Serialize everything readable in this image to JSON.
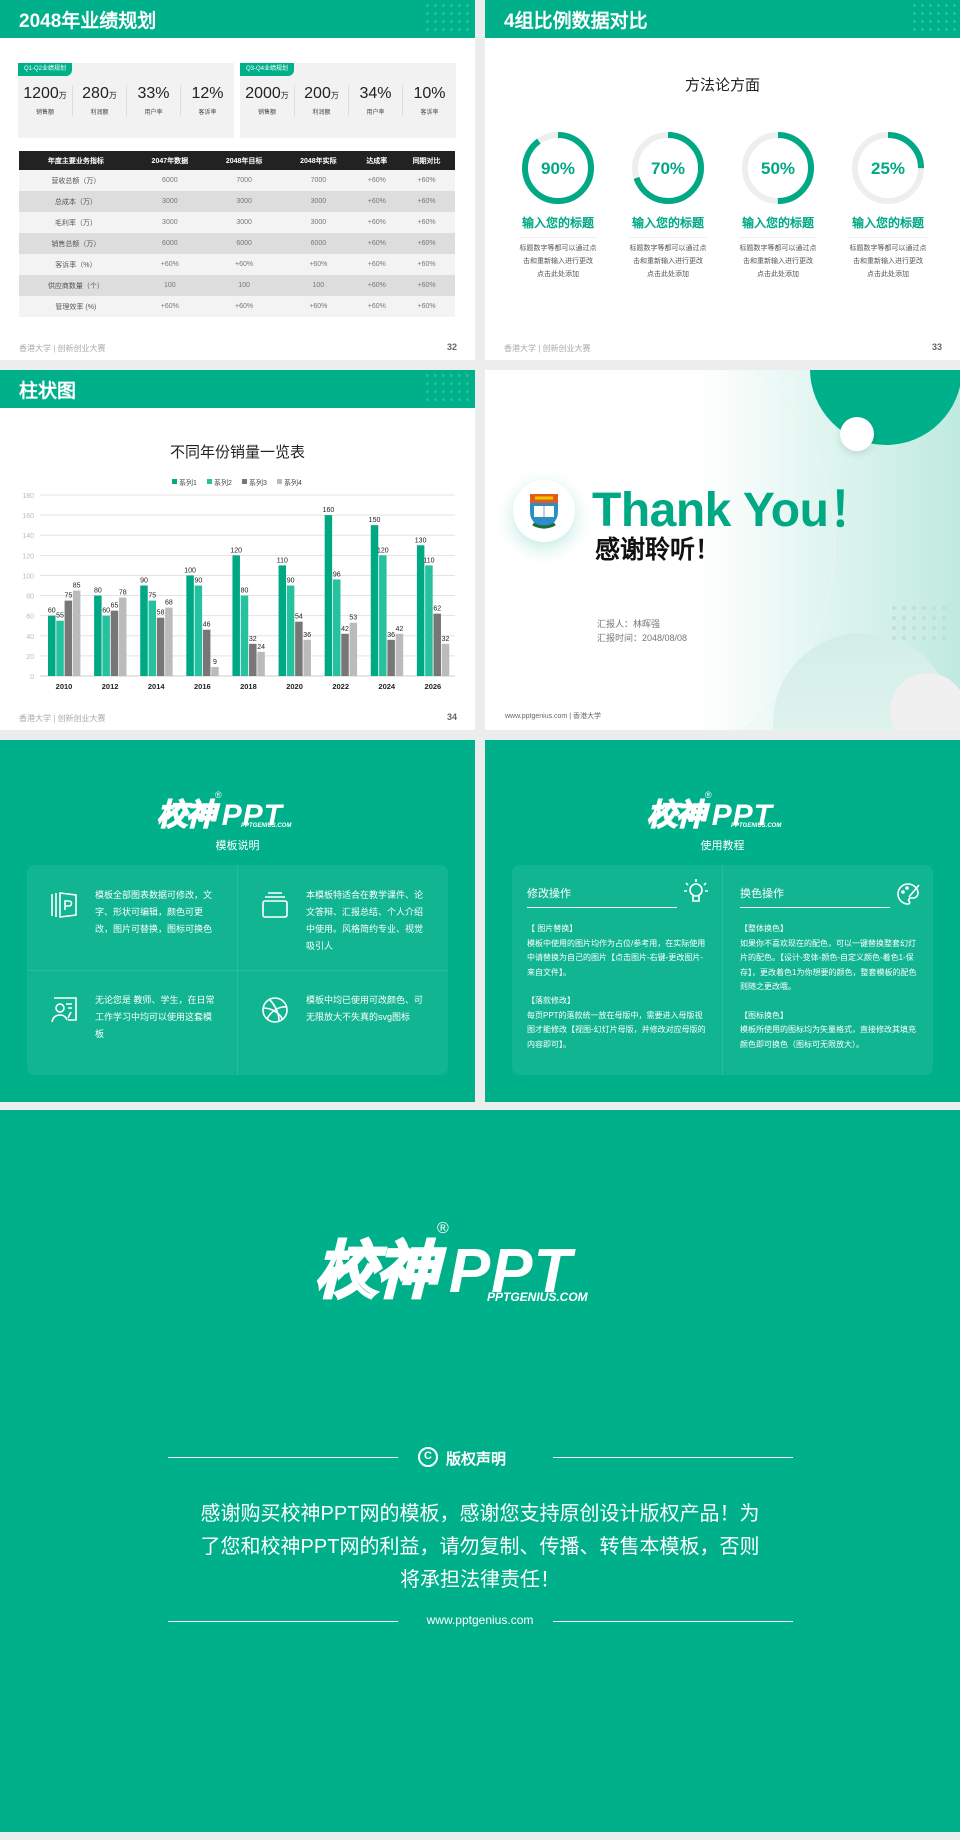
{
  "colors": {
    "brand": "#00b08a",
    "series1": "#00a884",
    "series2": "#26c29f",
    "series3": "#777777",
    "series4": "#bbbbbb",
    "dark": "#222222"
  },
  "footer": "香港大学 | 创新创业大赛",
  "slide32": {
    "title": "2048年业绩规划",
    "page": "32",
    "cards": [
      {
        "tag": "Q1-Q2业绩规划",
        "kpis": [
          {
            "v": "1200",
            "u": "万",
            "l": "销售额"
          },
          {
            "v": "280",
            "u": "万",
            "l": "利润额"
          },
          {
            "v": "33%",
            "u": "",
            "l": "用户率"
          },
          {
            "v": "12%",
            "u": "",
            "l": "客诉率"
          }
        ]
      },
      {
        "tag": "Q3-Q4业绩规划",
        "kpis": [
          {
            "v": "2000",
            "u": "万",
            "l": "销售额"
          },
          {
            "v": "200",
            "u": "万",
            "l": "利润额"
          },
          {
            "v": "34%",
            "u": "",
            "l": "用户率"
          },
          {
            "v": "10%",
            "u": "",
            "l": "客诉率"
          }
        ]
      }
    ],
    "table": {
      "headers": [
        "年度主要业务指标",
        "2047年数据",
        "2048年目标",
        "2048年实际",
        "达成率",
        "同期对比"
      ],
      "rows": [
        [
          "营收总额（万）",
          "6000",
          "7000",
          "7000",
          "+60%",
          "+60%"
        ],
        [
          "总成本（万）",
          "3000",
          "3000",
          "3000",
          "+60%",
          "+60%"
        ],
        [
          "毛利率（万）",
          "3000",
          "3000",
          "3000",
          "+60%",
          "+60%"
        ],
        [
          "销售总额（万）",
          "6000",
          "6000",
          "6000",
          "+60%",
          "+60%"
        ],
        [
          "客诉率（%）",
          "+60%",
          "+60%",
          "+60%",
          "+60%",
          "+60%"
        ],
        [
          "供应商数量（个）",
          "100",
          "100",
          "100",
          "+60%",
          "+60%"
        ],
        [
          "管理效率 (%)",
          "+60%",
          "+60%",
          "+60%",
          "+60%",
          "+60%"
        ]
      ]
    }
  },
  "slide33": {
    "title": "4组比例数据对比",
    "page": "33",
    "subtitle": "方法论方面",
    "rings": [
      {
        "percent": 90,
        "label": "90%",
        "title": "输入您的标题",
        "desc": [
          "标题数字等都可以通过点",
          "击和重新输入进行更改",
          "点击此处添加"
        ]
      },
      {
        "percent": 70,
        "label": "70%",
        "title": "输入您的标题",
        "desc": [
          "标题数字等都可以通过点",
          "击和重新输入进行更改",
          "点击此处添加"
        ]
      },
      {
        "percent": 50,
        "label": "50%",
        "title": "输入您的标题",
        "desc": [
          "标题数字等都可以通过点",
          "击和重新输入进行更改",
          "点击此处添加"
        ]
      },
      {
        "percent": 25,
        "label": "25%",
        "title": "输入您的标题",
        "desc": [
          "标题数字等都可以通过点",
          "击和重新输入进行更改",
          "点击此处添加"
        ]
      }
    ]
  },
  "slide34": {
    "title": "柱状图",
    "page": "34"
  },
  "chart_data": {
    "type": "bar",
    "title": "不同年份销量一览表",
    "xlabel": "",
    "ylabel": "",
    "categories": [
      "2010",
      "2012",
      "2014",
      "2016",
      "2018",
      "2020",
      "2022",
      "2024",
      "2026"
    ],
    "ylim": [
      0,
      180
    ],
    "yticks": [
      0,
      20,
      40,
      60,
      80,
      100,
      120,
      140,
      160,
      180
    ],
    "grid": true,
    "legend": "top",
    "series": [
      {
        "name": "系列1",
        "values": [
          60,
          80,
          90,
          100,
          120,
          110,
          160,
          150,
          130
        ]
      },
      {
        "name": "系列2",
        "values": [
          55,
          60,
          75,
          90,
          80,
          90,
          96,
          120,
          110
        ]
      },
      {
        "name": "系列3",
        "values": [
          75,
          65,
          58,
          46,
          32,
          54,
          42,
          36,
          62
        ]
      },
      {
        "name": "系列4",
        "values": [
          85,
          78,
          68,
          9,
          24,
          36,
          53,
          42,
          32
        ]
      }
    ]
  },
  "thanks": {
    "en": "Thank You！",
    "cn": "感谢聆听！",
    "reporter": "汇报人：林晖强",
    "time": "汇报时间：2048/08/08",
    "footer": "www.pptgenius.com | 香港大学",
    "logo_alt": "香港大学校徽"
  },
  "logo": {
    "cn": "校神",
    "reg": "®",
    "en": "PPT",
    "domain": "PPTGENIUS.COM"
  },
  "guide": {
    "title": "模板说明",
    "items": [
      {
        "icon": "ppt-file-icon",
        "text": "模板全部图表数据可修改，文字、形状可编辑，颜色可更改，图片可替换，图标可换色"
      },
      {
        "icon": "window-stack-icon",
        "text": "本模板特适合在教学课件、论文答辩、汇报总结、个人介绍中使用。风格简约专业、视觉吸引人"
      },
      {
        "icon": "presenter-icon",
        "text": "无论您是 教师、学生，在日常工作学习中均可以使用这套模板"
      },
      {
        "icon": "basketball-icon",
        "text": "模板中均已使用可改颜色、可无限放大不失真的svg图标"
      }
    ]
  },
  "tutorial": {
    "title": "使用教程",
    "left": {
      "heading": "修改操作",
      "icon": "lightbulb-icon",
      "p1h": "【 图片替换】",
      "p1": "模板中使用的图片均作为占位/参考用，在实际使用中请替换为自己的图片【点击图片-右键-更改图片-来自文件】。",
      "p2h": "【落款修改】",
      "p2": "每页PPT的落款统一放在母版中，需要进入母版视图才能修改【视图-幻灯片母版，并修改对应母版的内容即可】。"
    },
    "right": {
      "heading": "换色操作",
      "icon": "palette-icon",
      "p1h": "【整体换色】",
      "p1": "如果你不喜欢现在的配色，可以一键替换整套幻灯片的配色。【设计-变体-颜色-自定义颜色-着色1-保存】，更改着色1为你想要的颜色，整套模板的配色则随之更改哦。",
      "p2h": "【图标换色】",
      "p2": "模板所使用的图标均为矢量格式，直接修改其填充颜色即可换色（图标可无限放大）。"
    }
  },
  "copyright": {
    "heading": "版权声明",
    "lines": [
      "感谢购买校神PPT网的模板，感谢您支持原创设计版权产品！为",
      "了您和校神PPT网的利益，请勿复制、传播、转售本模板，否则",
      "将承担法律责任！"
    ],
    "url": "www.pptgenius.com"
  }
}
